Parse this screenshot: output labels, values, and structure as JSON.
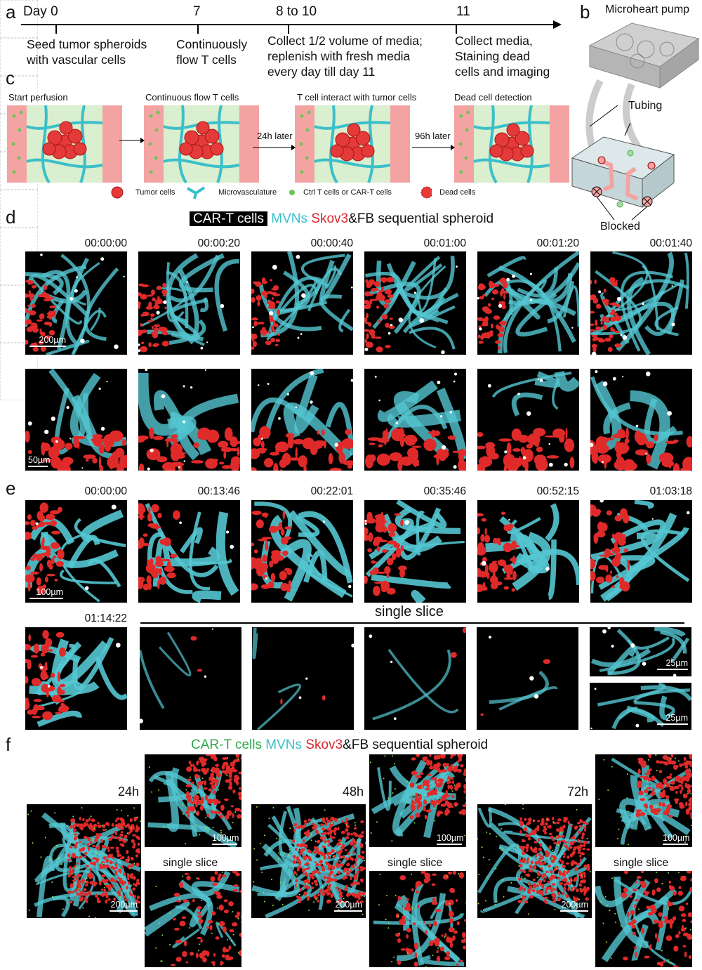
{
  "panel_labels": {
    "a": "a",
    "b": "b",
    "c": "c",
    "d": "d",
    "e": "e",
    "f": "f"
  },
  "timeline": {
    "days": [
      "Day 0",
      "7",
      "8 to 10",
      "11"
    ],
    "steps": [
      "Seed tumor spheroids\nwith vascular cells",
      "Continuously\nflow T cells",
      "Collect 1/2 volume of media;\nreplenish with fresh media\nevery day till day 11",
      "Collect media,\nStaining dead\ncells and imaging"
    ]
  },
  "device": {
    "pump": "Microheart pump",
    "tubing": "Tubing",
    "blocked": "Blocked"
  },
  "schematic": {
    "stages": [
      "Start perfusion",
      "Continuous flow T cells",
      "T cell interact with tumor cells",
      "Dead cell detection"
    ],
    "arrows": [
      "24h later",
      "96h later"
    ],
    "legend": [
      "Tumor cells",
      "Microvasculature",
      "Ctrl T cells or CAR-T cells",
      "Dead cells"
    ]
  },
  "panel_d": {
    "title_parts": [
      "CAR-T cells",
      " MVNs",
      " Skov3",
      "&FB sequential spheroid"
    ],
    "timestamps": [
      "00:00:00",
      "00:00:20",
      "00:00:40",
      "00:01:00",
      "00:01:20",
      "00:01:40"
    ],
    "scale_top": "200µm",
    "scale_bottom": "50µm"
  },
  "panel_e": {
    "timestamps": [
      "00:00:00",
      "00:13:46",
      "00:22:01",
      "00:35:46",
      "00:52:15",
      "01:03:18",
      "01:14:22"
    ],
    "scale": "100µm",
    "single_slice": "single slice",
    "scale_zoom": "25µm"
  },
  "panel_f": {
    "title_parts": [
      "CAR-T cells",
      " MVNs",
      " Skov3",
      "&FB sequential spheroid"
    ],
    "timepoints": [
      "24h",
      "48h",
      "72h"
    ],
    "scale_main": "200µm",
    "scale_zoom": "100µm",
    "single_slice": "single slice"
  },
  "colors": {
    "cyan": "#3bbfc9",
    "red": "#d7282f",
    "green": "#2da84a",
    "pink": "#f4a3a3",
    "lightgreen": "#d9efcf"
  }
}
